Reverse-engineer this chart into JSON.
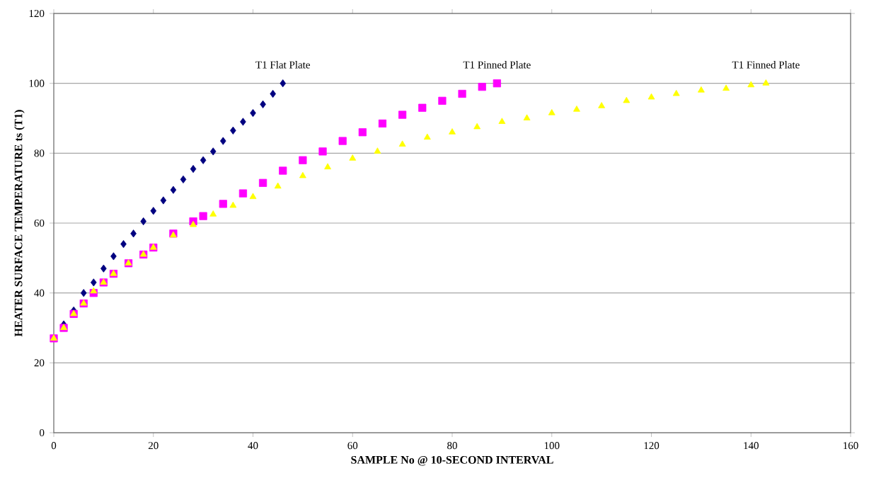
{
  "chart_data": {
    "type": "scatter",
    "xlabel": "SAMPLE No @ 10-SECOND INTERVAL",
    "ylabel": "HEATER SURFACE TEMPERATURE ts (T1)",
    "xlim": [
      0,
      160
    ],
    "xticks": [
      0,
      20,
      40,
      60,
      80,
      100,
      120,
      140,
      160
    ],
    "ylim": [
      0,
      120
    ],
    "yticks": [
      0,
      20,
      40,
      60,
      80,
      100,
      120
    ],
    "grid": "y",
    "legend": false,
    "series": [
      {
        "name": "T1 Flat Plate",
        "color": "#000080",
        "marker": "diamond",
        "x": [
          2,
          4,
          6,
          8,
          10,
          12,
          14,
          16,
          18,
          20,
          22,
          24,
          26,
          28,
          30,
          32,
          34,
          36,
          38,
          40,
          42,
          44,
          46
        ],
        "values": [
          31,
          35,
          40,
          43,
          47,
          50.5,
          54,
          57,
          60.5,
          63.5,
          66.5,
          69.5,
          72.5,
          75.5,
          78,
          80.5,
          83.5,
          86.5,
          89,
          91.5,
          94,
          97,
          100
        ]
      },
      {
        "name": "T1 Pinned  Plate",
        "color": "#ff00ff",
        "marker": "square",
        "x": [
          0,
          2,
          4,
          6,
          8,
          10,
          12,
          15,
          18,
          20,
          24,
          28,
          30,
          34,
          38,
          42,
          46,
          50,
          54,
          58,
          62,
          66,
          70,
          74,
          78,
          82,
          86,
          89
        ],
        "values": [
          27,
          30,
          34,
          37,
          40,
          43,
          45.5,
          48.5,
          51,
          53,
          57,
          60.5,
          62,
          65.5,
          68.5,
          71.5,
          75,
          78,
          80.5,
          83.5,
          86,
          88.5,
          91,
          93,
          95,
          97,
          99,
          100
        ]
      },
      {
        "name": "T1 Finned  Plate",
        "color": "#ffff00",
        "marker": "triangle",
        "x": [
          0,
          2,
          4,
          6,
          8,
          10,
          12,
          15,
          18,
          20,
          24,
          28,
          32,
          36,
          40,
          45,
          50,
          55,
          60,
          65,
          70,
          75,
          80,
          85,
          90,
          95,
          100,
          105,
          110,
          115,
          120,
          125,
          130,
          135,
          140,
          143
        ],
        "values": [
          27,
          30,
          34,
          37,
          40.5,
          43,
          45.5,
          48.5,
          51,
          53,
          56.5,
          59.5,
          62.5,
          65,
          67.5,
          70.5,
          73.5,
          76,
          78.5,
          80.5,
          82.5,
          84.5,
          86,
          87.5,
          89,
          90,
          91.5,
          92.5,
          93.5,
          95,
          96,
          97,
          98,
          98.5,
          99.5,
          100
        ]
      }
    ]
  }
}
